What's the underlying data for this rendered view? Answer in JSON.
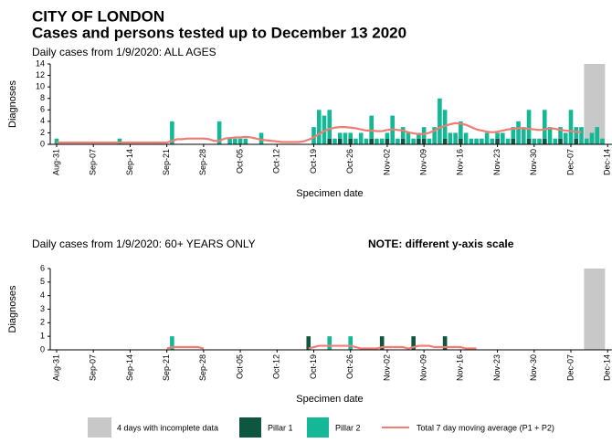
{
  "title": "CITY OF LONDON",
  "subtitle": "Cases and persons tested up to December 13 2020",
  "incomplete": {
    "label": "4 days with incomplete data",
    "days": 4,
    "color": "#c8c8c8"
  },
  "chart_data": [
    {
      "type": "bar",
      "title": "Daily cases from 1/9/2020: ALL AGES",
      "xlabel": "Specimen date",
      "ylabel": "Diagnoses",
      "stacked": true,
      "categories": [
        "Aug-31",
        null,
        null,
        null,
        null,
        null,
        null,
        "Sep-07",
        null,
        null,
        null,
        null,
        null,
        null,
        "Sep-14",
        null,
        null,
        null,
        null,
        null,
        null,
        "Sep-21",
        null,
        null,
        null,
        null,
        null,
        null,
        "Sep-28",
        null,
        null,
        null,
        null,
        null,
        null,
        "Oct-05",
        null,
        null,
        null,
        null,
        null,
        null,
        "Oct-12",
        null,
        null,
        null,
        null,
        null,
        null,
        "Oct-19",
        null,
        null,
        null,
        null,
        null,
        null,
        "Oct-26",
        null,
        null,
        null,
        null,
        null,
        null,
        "Nov-02",
        null,
        null,
        null,
        null,
        null,
        null,
        "Nov-09",
        null,
        null,
        null,
        null,
        null,
        null,
        "Nov-16",
        null,
        null,
        null,
        null,
        null,
        null,
        "Nov-23",
        null,
        null,
        null,
        null,
        null,
        null,
        "Nov-30",
        null,
        null,
        null,
        null,
        null,
        null,
        "Dec-07",
        null,
        null,
        null,
        null,
        null,
        null,
        "Dec-14"
      ],
      "ylim": [
        0,
        14
      ],
      "yticks": [
        0,
        2,
        4,
        6,
        8,
        10,
        12,
        14
      ],
      "series": [
        {
          "name": "Pillar 1",
          "type": "bar",
          "color": "#0f5640",
          "values": [
            0,
            0,
            0,
            0,
            0,
            0,
            0,
            0,
            0,
            0,
            0,
            0,
            0,
            0,
            0,
            0,
            0,
            0,
            0,
            0,
            0,
            0,
            0,
            0,
            0,
            0,
            0,
            0,
            0,
            0,
            0,
            0,
            0,
            0,
            0,
            0,
            0,
            0,
            0,
            0,
            0,
            0,
            0,
            0,
            0,
            0,
            0,
            0,
            0,
            0,
            0,
            0,
            1,
            0,
            1,
            0,
            1,
            0,
            0,
            0,
            1,
            0,
            0,
            1,
            0,
            0,
            1,
            0,
            0,
            1,
            1,
            0,
            0,
            0,
            1,
            0,
            0,
            1,
            0,
            0,
            0,
            0,
            0,
            0,
            1,
            0,
            0,
            1,
            0,
            0,
            1,
            0,
            0,
            1,
            0,
            0,
            1,
            0,
            0,
            1,
            0,
            0,
            0,
            0,
            0,
            null
          ]
        },
        {
          "name": "Pillar 2",
          "type": "bar",
          "color": "#14b897",
          "values": [
            1,
            0,
            0,
            0,
            0,
            0,
            0,
            0,
            0,
            0,
            0,
            0,
            1,
            0,
            0,
            0,
            0,
            0,
            0,
            0,
            0,
            0,
            4,
            0,
            0,
            0,
            0,
            0,
            0,
            0,
            0,
            4,
            0,
            1,
            1,
            1,
            1,
            0,
            0,
            2,
            0,
            0,
            0,
            0,
            0,
            0,
            0,
            0,
            0,
            3,
            6,
            5,
            5,
            1,
            1,
            2,
            1,
            1,
            2,
            1,
            4,
            1,
            1,
            1,
            5,
            1,
            2,
            2,
            1,
            1,
            2,
            1,
            3,
            8,
            5,
            2,
            2,
            3,
            2,
            1,
            1,
            1,
            2,
            1,
            1,
            2,
            1,
            2,
            4,
            3,
            5,
            1,
            1,
            5,
            3,
            1,
            2,
            2,
            6,
            2,
            3,
            1,
            2,
            3,
            1,
            null
          ]
        },
        {
          "name": "Total 7 day moving average (P1 + P2)",
          "type": "line",
          "color": "#f07c72",
          "values": [
            0.3,
            0.3,
            0.3,
            0.3,
            0.3,
            0.3,
            0.3,
            0.3,
            0.3,
            0.3,
            0.3,
            0.3,
            0.3,
            0.3,
            0.3,
            0.3,
            0.3,
            0.3,
            0.3,
            0.3,
            0.3,
            0.3,
            0.6,
            0.9,
            0.9,
            1,
            1,
            1,
            1,
            0.9,
            0.6,
            0.6,
            1,
            1.1,
            1.2,
            1.2,
            1.3,
            1.2,
            1,
            0.8,
            0.7,
            0.6,
            0.5,
            0.4,
            0.4,
            0.4,
            0.4,
            0.5,
            0.8,
            1.2,
            1.8,
            2.3,
            2.7,
            2.9,
            3,
            3,
            2.9,
            2.8,
            2.6,
            2.4,
            2.4,
            2.3,
            2.3,
            2.5,
            2.6,
            2.5,
            2.4,
            2.1,
            1.9,
            1.8,
            1.8,
            2,
            2.4,
            2.9,
            3.2,
            3.5,
            3.7,
            3.6,
            3.4,
            3,
            2.6,
            2.4,
            2.2,
            2.1,
            2.2,
            2.4,
            2.6,
            2.7,
            2.8,
            2.8,
            2.7,
            2.6,
            2.5,
            2.6,
            2.8,
            2.7,
            2.5,
            2.4,
            2.3,
            2.2,
            2.1,
            null,
            null,
            null,
            null,
            null
          ]
        }
      ]
    },
    {
      "type": "bar",
      "title": "Daily cases from 1/9/2020: 60+ YEARS ONLY",
      "note": "NOTE: different y-axis scale",
      "xlabel": "Specimen date",
      "ylabel": "Diagnoses",
      "stacked": true,
      "categories": [
        "Aug-31",
        null,
        null,
        null,
        null,
        null,
        null,
        "Sep-07",
        null,
        null,
        null,
        null,
        null,
        null,
        "Sep-14",
        null,
        null,
        null,
        null,
        null,
        null,
        "Sep-21",
        null,
        null,
        null,
        null,
        null,
        null,
        "Sep-28",
        null,
        null,
        null,
        null,
        null,
        null,
        "Oct-05",
        null,
        null,
        null,
        null,
        null,
        null,
        "Oct-12",
        null,
        null,
        null,
        null,
        null,
        null,
        "Oct-19",
        null,
        null,
        null,
        null,
        null,
        null,
        "Oct-26",
        null,
        null,
        null,
        null,
        null,
        null,
        "Nov-02",
        null,
        null,
        null,
        null,
        null,
        null,
        "Nov-09",
        null,
        null,
        null,
        null,
        null,
        null,
        "Nov-16",
        null,
        null,
        null,
        null,
        null,
        null,
        "Nov-23",
        null,
        null,
        null,
        null,
        null,
        null,
        "Nov-30",
        null,
        null,
        null,
        null,
        null,
        null,
        "Dec-07",
        null,
        null,
        null,
        null,
        null,
        null,
        "Dec-14"
      ],
      "ylim": [
        0,
        6
      ],
      "yticks": [
        0,
        1,
        2,
        3,
        4,
        5,
        6
      ],
      "series": [
        {
          "type": "bar",
          "color": "#0f5640",
          "values": [
            0,
            0,
            0,
            0,
            0,
            0,
            0,
            0,
            0,
            0,
            0,
            0,
            0,
            0,
            0,
            0,
            0,
            0,
            0,
            0,
            0,
            0,
            0,
            0,
            0,
            0,
            0,
            0,
            0,
            0,
            0,
            0,
            0,
            0,
            0,
            0,
            0,
            0,
            0,
            0,
            0,
            0,
            0,
            0,
            0,
            0,
            0,
            0,
            1,
            0,
            0,
            0,
            0,
            0,
            0,
            0,
            0,
            0,
            0,
            0,
            0,
            0,
            1,
            0,
            0,
            0,
            0,
            0,
            1,
            0,
            0,
            0,
            0,
            0,
            1,
            0,
            0,
            0,
            0,
            0,
            0,
            0,
            0,
            0,
            0,
            0,
            0,
            0,
            0,
            0,
            0,
            0,
            0,
            0,
            0,
            0,
            0,
            0,
            0,
            0,
            0,
            0,
            0,
            0,
            0,
            null
          ]
        },
        {
          "type": "bar",
          "color": "#14b897",
          "values": [
            0,
            0,
            0,
            0,
            0,
            0,
            0,
            0,
            0,
            0,
            0,
            0,
            0,
            0,
            0,
            0,
            0,
            0,
            0,
            0,
            0,
            0,
            1,
            0,
            0,
            0,
            0,
            0,
            0,
            0,
            0,
            0,
            0,
            0,
            0,
            0,
            0,
            0,
            0,
            0,
            0,
            0,
            0,
            0,
            0,
            0,
            0,
            0,
            0,
            0,
            0,
            0,
            1,
            0,
            0,
            0,
            1,
            0,
            0,
            0,
            0,
            0,
            0,
            0,
            0,
            0,
            0,
            0,
            0,
            0,
            0,
            0,
            0,
            0,
            0,
            0,
            0,
            0,
            0,
            0,
            0,
            0,
            0,
            0,
            0,
            0,
            0,
            0,
            0,
            0,
            0,
            0,
            0,
            0,
            0,
            0,
            0,
            0,
            0,
            0,
            0,
            0,
            0,
            0,
            0,
            null
          ]
        },
        {
          "type": "line",
          "color": "#f07c72",
          "values": [
            null,
            null,
            null,
            null,
            null,
            null,
            null,
            null,
            null,
            null,
            null,
            null,
            null,
            null,
            null,
            null,
            null,
            null,
            null,
            null,
            null,
            0.1,
            0.2,
            0.2,
            0.2,
            0.2,
            0.2,
            0.2,
            0.1,
            null,
            null,
            null,
            null,
            null,
            null,
            null,
            null,
            null,
            null,
            null,
            null,
            null,
            null,
            null,
            null,
            null,
            null,
            null,
            0.1,
            0.2,
            0.3,
            0.3,
            0.3,
            0.3,
            0.3,
            0.3,
            0.3,
            0.2,
            0.1,
            0.1,
            0.1,
            0.1,
            0.2,
            0.2,
            0.2,
            0.2,
            0.2,
            0.1,
            0.2,
            0.3,
            0.3,
            0.3,
            0.2,
            0.2,
            0.2,
            0.2,
            0.2,
            0.2,
            0.1,
            0.1,
            0.1,
            null,
            null,
            null,
            null,
            null,
            null,
            null,
            null,
            null,
            null,
            null,
            null,
            null,
            null,
            null,
            null,
            null,
            null,
            null,
            null,
            null,
            null,
            null,
            null,
            null
          ]
        }
      ]
    }
  ]
}
